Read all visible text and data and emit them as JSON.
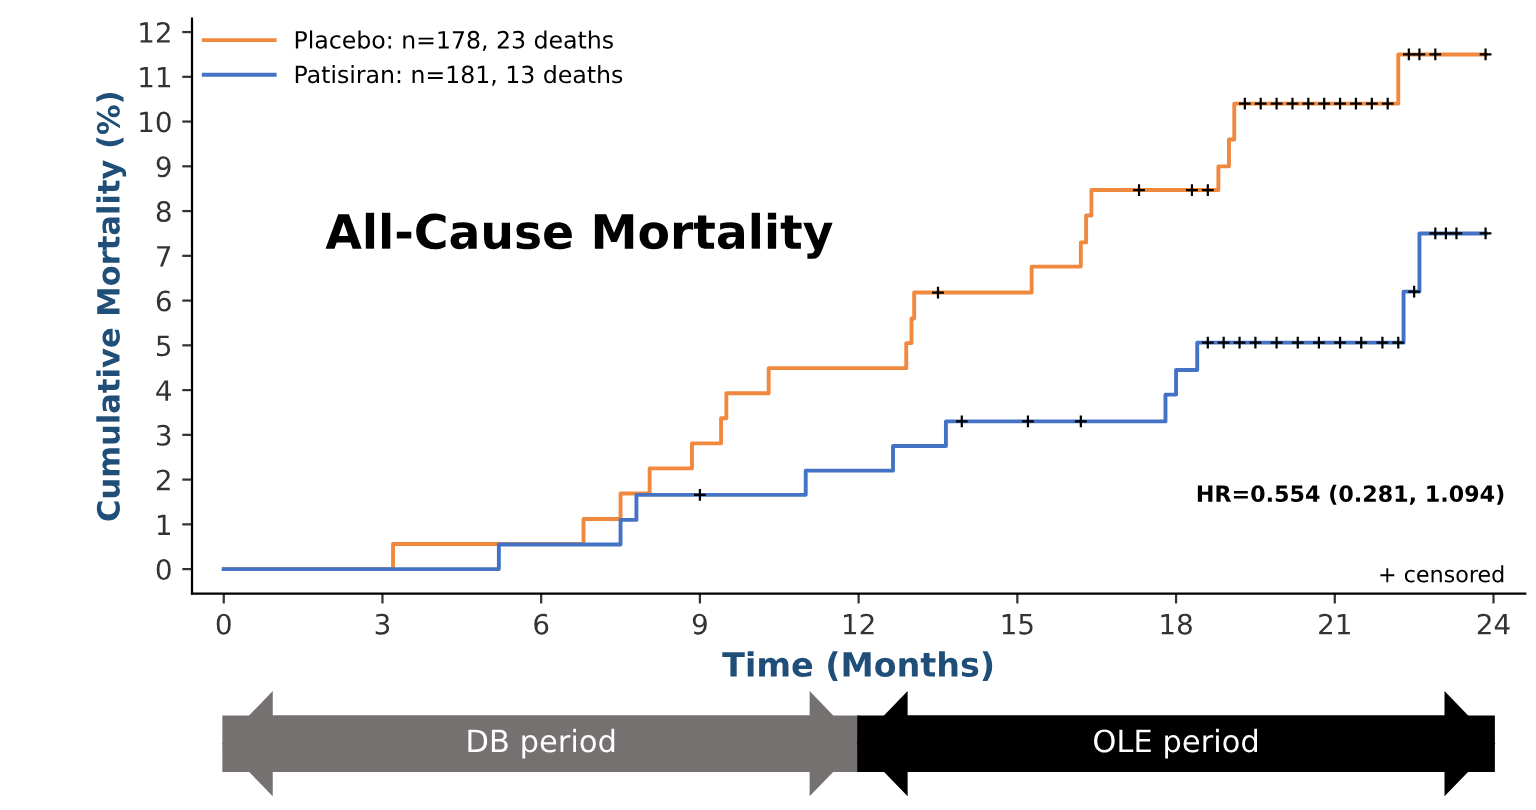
{
  "chart_data": {
    "type": "step",
    "title": "All-Cause Mortality",
    "xlabel": "Time (Months)",
    "ylabel": "Cumulative Mortality (%)",
    "series": [
      {
        "name": "Placebo: n=178, 23 deaths",
        "color": "#f0883e",
        "x": [
          0,
          3.2,
          6.8,
          7.5,
          8.05,
          8.85,
          9.4,
          9.5,
          10.3,
          12.9,
          13.0,
          13.05,
          15.27,
          16.2,
          16.3,
          16.4,
          18.8,
          19.0,
          19.1,
          22.2,
          23.85
        ],
        "values": [
          0,
          0.56,
          1.12,
          1.69,
          2.25,
          2.81,
          3.37,
          3.93,
          4.49,
          5.05,
          5.6,
          6.18,
          6.76,
          7.3,
          7.9,
          8.47,
          9.0,
          9.6,
          10.4,
          11.5,
          11.5
        ]
      },
      {
        "name": "Patisiran: n=181, 13 deaths",
        "color": "#4472c4",
        "x": [
          0,
          5.2,
          7.5,
          7.8,
          11.0,
          12.65,
          13.65,
          17.8,
          18.0,
          18.4,
          22.3,
          22.6,
          23.85
        ],
        "values": [
          0,
          0.55,
          1.1,
          1.66,
          2.2,
          2.75,
          3.3,
          3.9,
          4.45,
          5.06,
          6.2,
          7.5,
          7.5
        ]
      },
      {
        "type": "scatter",
        "color": "#000000",
        "marker": "cross",
        "x": [
          13.5,
          17.3,
          18.3,
          18.6,
          19.3,
          19.6,
          19.9,
          20.2,
          20.5,
          20.8,
          21.1,
          21.4,
          21.7,
          22.0,
          22.4,
          22.6,
          22.9,
          23.85
        ],
        "values": [
          6.18,
          8.47,
          8.47,
          8.47,
          10.4,
          10.4,
          10.4,
          10.4,
          10.4,
          10.4,
          10.4,
          10.4,
          10.4,
          10.4,
          11.5,
          11.5,
          11.5,
          11.5
        ]
      },
      {
        "type": "scatter",
        "color": "#000000",
        "marker": "cross",
        "x": [
          9.0,
          13.95,
          15.2,
          16.2,
          18.6,
          18.9,
          19.2,
          19.5,
          19.9,
          20.3,
          20.7,
          21.1,
          21.5,
          21.9,
          22.2,
          22.5,
          22.9,
          23.1,
          23.3,
          23.85
        ],
        "values": [
          1.66,
          3.3,
          3.3,
          3.3,
          5.06,
          5.06,
          5.06,
          5.06,
          5.06,
          5.06,
          5.06,
          5.06,
          5.06,
          5.06,
          5.06,
          6.2,
          7.5,
          7.5,
          7.5,
          7.5
        ]
      }
    ],
    "xlim": [
      -0.6,
      24.6
    ],
    "ylim": [
      -0.55,
      12.3
    ],
    "xticks": [
      0,
      3,
      6,
      9,
      12,
      15,
      18,
      21,
      24
    ],
    "yticks": [
      0,
      1,
      2,
      3,
      4,
      5,
      6,
      7,
      8,
      9,
      10,
      11,
      12
    ],
    "annotations": [
      "HR=0.554 (0.281, 1.094)",
      "+ censored",
      "DB period",
      "OLE period"
    ],
    "legend": "top left",
    "grid": false
  }
}
